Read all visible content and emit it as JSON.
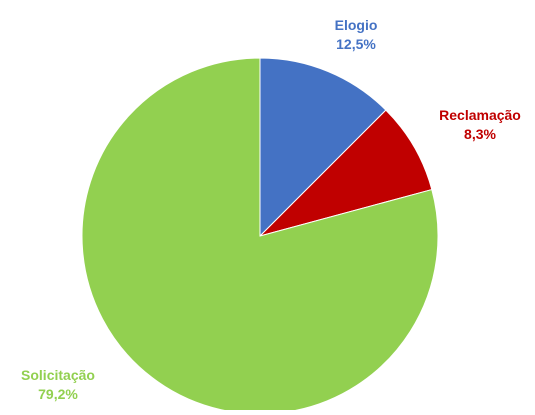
{
  "chart_data": {
    "type": "pie",
    "title": "",
    "slices": [
      {
        "label": "Elogio",
        "value": 12.5,
        "value_label": "12,5%",
        "color": "#4472C4",
        "label_color": "#4472C4"
      },
      {
        "label": "Reclamação",
        "value": 8.3,
        "value_label": "8,3%",
        "color": "#C00000",
        "label_color": "#C00000"
      },
      {
        "label": "Solicitação",
        "value": 79.2,
        "value_label": "79,2%",
        "color": "#92D050",
        "label_color": "#92D050"
      }
    ],
    "start_angle": "12 o'clock",
    "direction": "clockwise",
    "legend": "none"
  }
}
